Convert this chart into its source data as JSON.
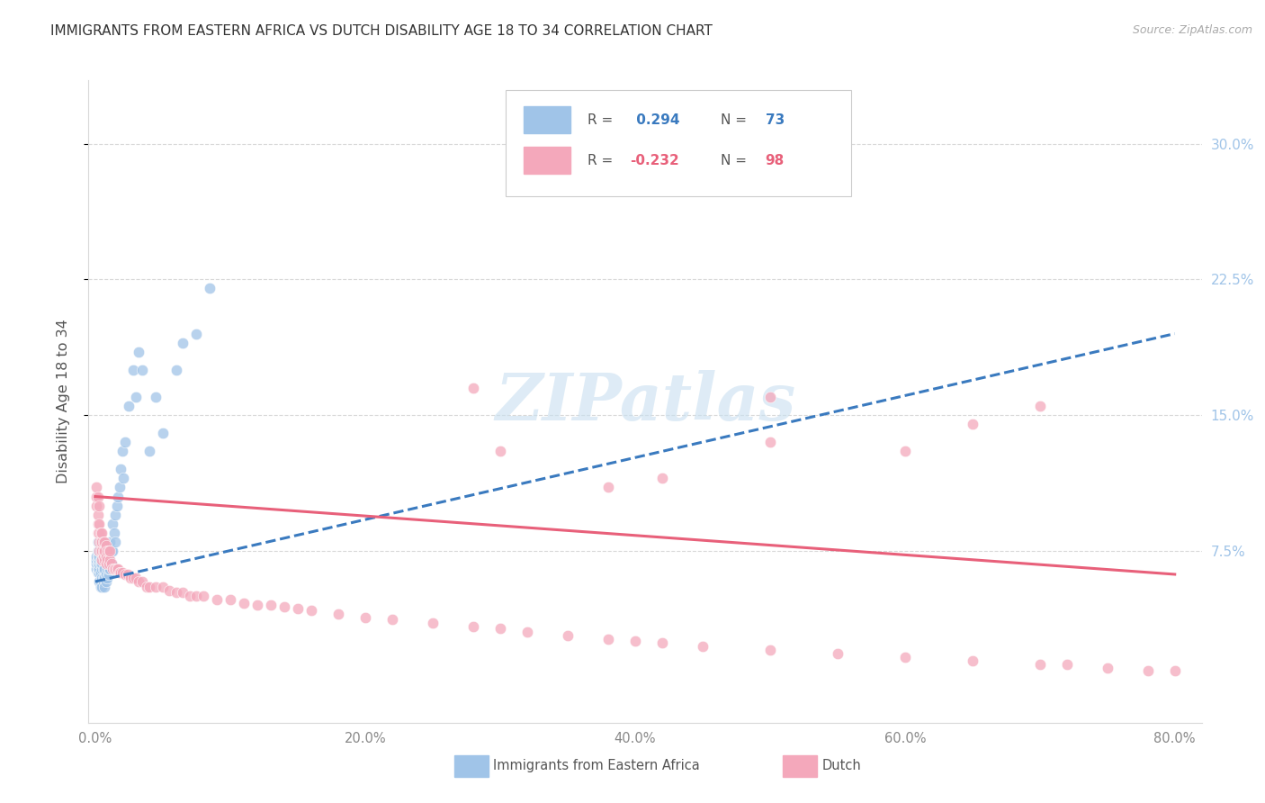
{
  "title": "IMMIGRANTS FROM EASTERN AFRICA VS DUTCH DISABILITY AGE 18 TO 34 CORRELATION CHART",
  "source": "Source: ZipAtlas.com",
  "ylabel": "Disability Age 18 to 34",
  "yticks": [
    "7.5%",
    "15.0%",
    "22.5%",
    "30.0%"
  ],
  "ytick_vals": [
    0.075,
    0.15,
    0.225,
    0.3
  ],
  "watermark": "ZIPatlas",
  "blue_scatter_x": [
    0.001,
    0.001,
    0.001,
    0.001,
    0.002,
    0.002,
    0.002,
    0.002,
    0.002,
    0.002,
    0.002,
    0.003,
    0.003,
    0.003,
    0.003,
    0.003,
    0.003,
    0.003,
    0.004,
    0.004,
    0.004,
    0.004,
    0.004,
    0.005,
    0.005,
    0.005,
    0.005,
    0.005,
    0.006,
    0.006,
    0.006,
    0.006,
    0.007,
    0.007,
    0.007,
    0.007,
    0.008,
    0.008,
    0.008,
    0.009,
    0.009,
    0.009,
    0.01,
    0.01,
    0.01,
    0.011,
    0.011,
    0.012,
    0.012,
    0.013,
    0.013,
    0.014,
    0.015,
    0.015,
    0.016,
    0.017,
    0.018,
    0.019,
    0.02,
    0.021,
    0.022,
    0.025,
    0.028,
    0.03,
    0.032,
    0.035,
    0.04,
    0.045,
    0.05,
    0.06,
    0.065,
    0.075,
    0.085
  ],
  "blue_scatter_y": [
    0.065,
    0.068,
    0.07,
    0.072,
    0.063,
    0.065,
    0.068,
    0.07,
    0.072,
    0.075,
    0.08,
    0.058,
    0.063,
    0.065,
    0.068,
    0.07,
    0.072,
    0.075,
    0.055,
    0.058,
    0.063,
    0.068,
    0.07,
    0.055,
    0.06,
    0.065,
    0.068,
    0.072,
    0.058,
    0.06,
    0.065,
    0.07,
    0.055,
    0.06,
    0.065,
    0.07,
    0.058,
    0.062,
    0.068,
    0.06,
    0.065,
    0.07,
    0.062,
    0.065,
    0.07,
    0.065,
    0.08,
    0.068,
    0.075,
    0.075,
    0.09,
    0.085,
    0.08,
    0.095,
    0.1,
    0.105,
    0.11,
    0.12,
    0.13,
    0.115,
    0.135,
    0.155,
    0.175,
    0.16,
    0.185,
    0.175,
    0.13,
    0.16,
    0.14,
    0.175,
    0.19,
    0.195,
    0.22
  ],
  "pink_scatter_x": [
    0.001,
    0.001,
    0.001,
    0.002,
    0.002,
    0.002,
    0.002,
    0.003,
    0.003,
    0.003,
    0.003,
    0.003,
    0.004,
    0.004,
    0.004,
    0.005,
    0.005,
    0.005,
    0.005,
    0.006,
    0.006,
    0.006,
    0.007,
    0.007,
    0.007,
    0.008,
    0.008,
    0.008,
    0.009,
    0.009,
    0.01,
    0.01,
    0.011,
    0.011,
    0.012,
    0.013,
    0.014,
    0.015,
    0.016,
    0.017,
    0.018,
    0.019,
    0.02,
    0.022,
    0.024,
    0.026,
    0.028,
    0.03,
    0.032,
    0.035,
    0.038,
    0.04,
    0.045,
    0.05,
    0.055,
    0.06,
    0.065,
    0.07,
    0.075,
    0.08,
    0.09,
    0.1,
    0.11,
    0.12,
    0.13,
    0.14,
    0.15,
    0.16,
    0.18,
    0.2,
    0.22,
    0.25,
    0.28,
    0.3,
    0.32,
    0.35,
    0.38,
    0.4,
    0.42,
    0.45,
    0.5,
    0.55,
    0.6,
    0.65,
    0.7,
    0.72,
    0.75,
    0.78,
    0.8,
    0.5,
    0.6,
    0.65,
    0.7,
    0.38,
    0.42,
    0.5,
    0.28,
    0.3
  ],
  "pink_scatter_y": [
    0.1,
    0.105,
    0.11,
    0.085,
    0.09,
    0.095,
    0.105,
    0.075,
    0.08,
    0.085,
    0.09,
    0.1,
    0.075,
    0.08,
    0.085,
    0.07,
    0.075,
    0.08,
    0.085,
    0.072,
    0.075,
    0.08,
    0.07,
    0.075,
    0.08,
    0.068,
    0.072,
    0.078,
    0.07,
    0.075,
    0.068,
    0.075,
    0.07,
    0.075,
    0.068,
    0.065,
    0.065,
    0.065,
    0.065,
    0.065,
    0.063,
    0.063,
    0.063,
    0.062,
    0.062,
    0.06,
    0.06,
    0.06,
    0.058,
    0.058,
    0.055,
    0.055,
    0.055,
    0.055,
    0.053,
    0.052,
    0.052,
    0.05,
    0.05,
    0.05,
    0.048,
    0.048,
    0.046,
    0.045,
    0.045,
    0.044,
    0.043,
    0.042,
    0.04,
    0.038,
    0.037,
    0.035,
    0.033,
    0.032,
    0.03,
    0.028,
    0.026,
    0.025,
    0.024,
    0.022,
    0.02,
    0.018,
    0.016,
    0.014,
    0.012,
    0.012,
    0.01,
    0.009,
    0.009,
    0.135,
    0.13,
    0.145,
    0.155,
    0.11,
    0.115,
    0.16,
    0.165,
    0.13
  ],
  "blue_line_x": [
    0.0,
    0.8
  ],
  "blue_line_y": [
    0.058,
    0.195
  ],
  "pink_line_x": [
    0.0,
    0.8
  ],
  "pink_line_y": [
    0.105,
    0.062
  ],
  "xlim": [
    -0.005,
    0.82
  ],
  "ylim": [
    -0.02,
    0.335
  ],
  "xtick_vals": [
    0.0,
    0.2,
    0.4,
    0.6,
    0.8
  ],
  "xtick_labels": [
    "0.0%",
    "20.0%",
    "40.0%",
    "60.0%",
    "80.0%"
  ],
  "background_color": "#ffffff",
  "grid_color": "#d8d8d8",
  "title_color": "#333333",
  "blue_color": "#a0c4e8",
  "pink_color": "#f4a8bb",
  "blue_line_color": "#3a7abf",
  "pink_line_color": "#e8607a",
  "right_tick_color": "#a0c4e8",
  "watermark_color": "#c8dff0",
  "source_color": "#aaaaaa"
}
